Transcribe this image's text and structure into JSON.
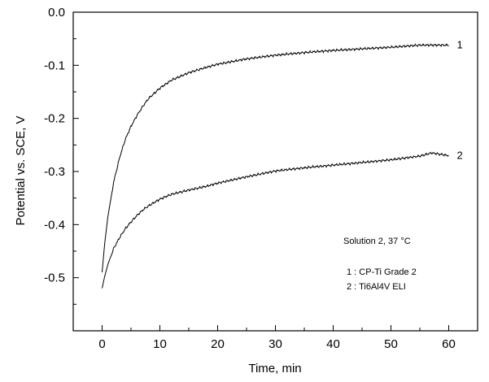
{
  "chart_data": {
    "type": "line",
    "title": "",
    "xlabel": "Time, min",
    "ylabel": "Potential vs. SCE, V",
    "xlim": [
      -5,
      65
    ],
    "ylim": [
      -0.6,
      0.0
    ],
    "x_ticks": [
      0,
      10,
      20,
      30,
      40,
      50,
      60
    ],
    "y_ticks": [
      0.0,
      -0.1,
      -0.2,
      -0.3,
      -0.4,
      -0.5
    ],
    "x_tick_labels": [
      "0",
      "10",
      "20",
      "30",
      "40",
      "50",
      "60"
    ],
    "y_tick_labels": [
      "0.0",
      "-0.1",
      "-0.2",
      "-0.3",
      "-0.4",
      "-0.5"
    ],
    "grid": false,
    "series": [
      {
        "label": "1",
        "x": [
          0,
          0.5,
          1,
          2,
          3,
          4,
          5,
          6,
          7,
          8,
          10,
          12,
          15,
          18,
          20,
          25,
          30,
          35,
          40,
          45,
          50,
          55,
          57,
          60
        ],
        "y": [
          -0.49,
          -0.43,
          -0.385,
          -0.32,
          -0.275,
          -0.24,
          -0.215,
          -0.195,
          -0.178,
          -0.163,
          -0.143,
          -0.128,
          -0.114,
          -0.104,
          -0.098,
          -0.088,
          -0.081,
          -0.076,
          -0.072,
          -0.069,
          -0.066,
          -0.062,
          -0.062,
          -0.062
        ]
      },
      {
        "label": "2",
        "x": [
          0,
          0.5,
          1,
          2,
          3,
          4,
          5,
          6,
          7,
          8,
          10,
          12,
          15,
          18,
          20,
          25,
          30,
          35,
          40,
          45,
          50,
          55,
          57,
          60
        ],
        "y": [
          -0.52,
          -0.495,
          -0.475,
          -0.445,
          -0.425,
          -0.408,
          -0.395,
          -0.383,
          -0.373,
          -0.365,
          -0.352,
          -0.343,
          -0.335,
          -0.328,
          -0.322,
          -0.31,
          -0.299,
          -0.293,
          -0.288,
          -0.283,
          -0.278,
          -0.271,
          -0.265,
          -0.27
        ]
      }
    ],
    "annotations": {
      "condition": "Solution 2, 37 °C",
      "legend": [
        "1 : CP-Ti Grade 2",
        "2 : Ti6Al4V ELI"
      ]
    }
  }
}
